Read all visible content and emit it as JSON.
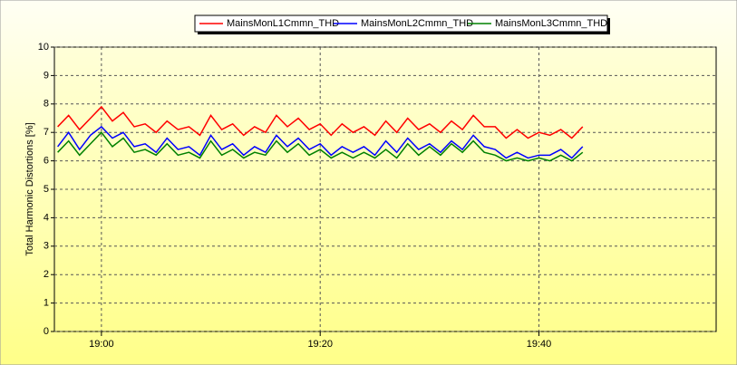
{
  "chart_data": {
    "type": "line",
    "ylabel": "Total Harmonic Distortions [%]",
    "x": [
      1136,
      1137,
      1138,
      1139,
      1140,
      1141,
      1142,
      1143,
      1144,
      1145,
      1146,
      1147,
      1148,
      1149,
      1150,
      1151,
      1152,
      1153,
      1154,
      1155,
      1156,
      1157,
      1158,
      1159,
      1160,
      1161,
      1162,
      1163,
      1164,
      1165,
      1166,
      1167,
      1168,
      1169,
      1170,
      1171,
      1172,
      1173,
      1174,
      1175,
      1176,
      1177,
      1178,
      1179,
      1180,
      1181,
      1182,
      1183,
      1184
    ],
    "series": [
      {
        "name": "MainsMonL1Cmmn_THD",
        "color": "#ff0000",
        "values": [
          7.2,
          7.6,
          7.1,
          7.5,
          7.9,
          7.4,
          7.7,
          7.2,
          7.3,
          7.0,
          7.4,
          7.1,
          7.2,
          6.9,
          7.6,
          7.1,
          7.3,
          6.9,
          7.2,
          7.0,
          7.6,
          7.2,
          7.5,
          7.1,
          7.3,
          6.9,
          7.3,
          7.0,
          7.2,
          6.9,
          7.4,
          7.0,
          7.5,
          7.1,
          7.3,
          7.0,
          7.4,
          7.1,
          7.6,
          7.2,
          7.2,
          6.8,
          7.1,
          6.8,
          7.0,
          6.9,
          7.1,
          6.8,
          7.2
        ]
      },
      {
        "name": "MainsMonL2Cmmn_THD",
        "color": "#0000ff",
        "values": [
          6.5,
          7.0,
          6.4,
          6.9,
          7.2,
          6.8,
          7.0,
          6.5,
          6.6,
          6.3,
          6.8,
          6.4,
          6.5,
          6.2,
          6.9,
          6.4,
          6.6,
          6.2,
          6.5,
          6.3,
          6.9,
          6.5,
          6.8,
          6.4,
          6.6,
          6.2,
          6.5,
          6.3,
          6.5,
          6.2,
          6.7,
          6.3,
          6.8,
          6.4,
          6.6,
          6.3,
          6.7,
          6.4,
          6.9,
          6.5,
          6.4,
          6.1,
          6.3,
          6.1,
          6.2,
          6.2,
          6.4,
          6.1,
          6.5
        ]
      },
      {
        "name": "MainsMonL3Cmmn_THD",
        "color": "#008000",
        "values": [
          6.3,
          6.7,
          6.2,
          6.6,
          7.0,
          6.5,
          6.8,
          6.3,
          6.4,
          6.2,
          6.6,
          6.2,
          6.3,
          6.1,
          6.7,
          6.2,
          6.4,
          6.1,
          6.3,
          6.2,
          6.7,
          6.3,
          6.6,
          6.2,
          6.4,
          6.1,
          6.3,
          6.1,
          6.3,
          6.1,
          6.4,
          6.1,
          6.6,
          6.2,
          6.5,
          6.2,
          6.6,
          6.3,
          6.7,
          6.3,
          6.2,
          6.0,
          6.1,
          6.0,
          6.1,
          6.0,
          6.2,
          6.0,
          6.3
        ]
      }
    ],
    "xlim": [
      1135.7,
      1196.2
    ],
    "xticks": [
      {
        "value": 1140,
        "label": "19:00"
      },
      {
        "value": 1160,
        "label": "19:20"
      },
      {
        "value": 1180,
        "label": "19:40"
      }
    ],
    "ylim": [
      0,
      10
    ],
    "yticks": [
      0,
      1,
      2,
      3,
      4,
      5,
      6,
      7,
      8,
      9,
      10
    ],
    "grid": true,
    "legend": "top"
  }
}
